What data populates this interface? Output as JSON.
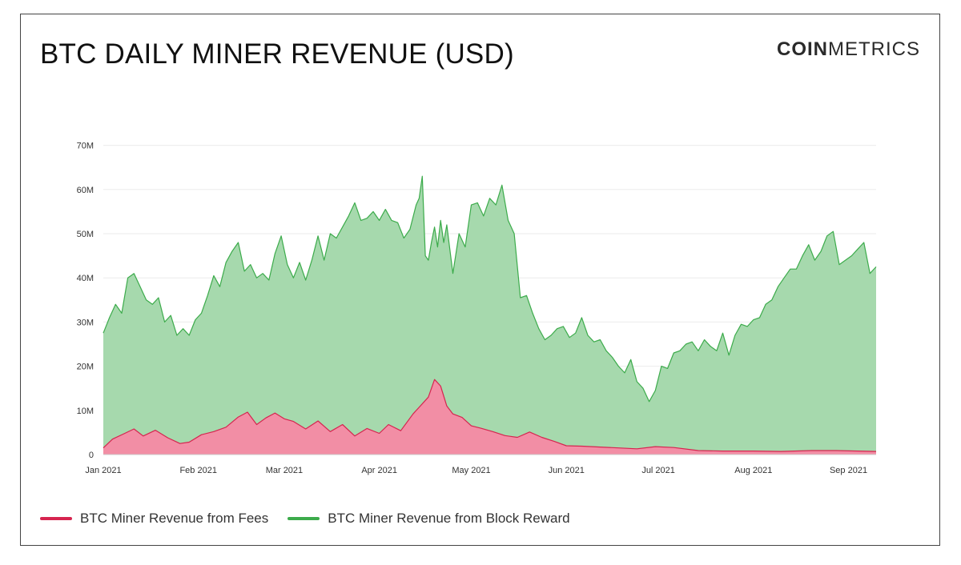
{
  "header": {
    "title": "BTC DAILY MINER REVENUE (USD)",
    "logo_bold": "COIN",
    "logo_light": "METRICS"
  },
  "legend": {
    "fees_label": "BTC Miner Revenue from Fees",
    "reward_label": "BTC Miner Revenue from Block Reward"
  },
  "colors": {
    "fees_line": "#d6244f",
    "fees_fill": "#f28ea5",
    "reward_line": "#3cab4b",
    "reward_fill": "#a6d9ad",
    "grid": "#ebebeb",
    "watermark": "#cfe9d2"
  },
  "chart_data": {
    "type": "area",
    "title": "BTC DAILY MINER REVENUE (USD)",
    "xlabel": "",
    "ylabel": "",
    "ylim": [
      0,
      75000000
    ],
    "y_ticks": [
      0,
      10000000,
      20000000,
      30000000,
      40000000,
      50000000,
      60000000,
      70000000
    ],
    "y_tick_labels": [
      "0",
      "10M",
      "20M",
      "30M",
      "40M",
      "50M",
      "60M",
      "70M"
    ],
    "x_ticks": [
      "2021-01-01",
      "2021-02-01",
      "2021-03-01",
      "2021-04-01",
      "2021-05-01",
      "2021-06-01",
      "2021-07-01",
      "2021-08-01",
      "2021-09-01"
    ],
    "x_tick_labels": [
      "Jan 2021",
      "Feb 2021",
      "Mar 2021",
      "Apr 2021",
      "May 2021",
      "Jun 2021",
      "Jul 2021",
      "Aug 2021",
      "Sep 2021"
    ],
    "grid": true,
    "legend_position": "bottom-left",
    "stacked": true,
    "series": [
      {
        "name": "BTC Miner Revenue from Fees",
        "x": [
          "2021-01-01",
          "2021-01-04",
          "2021-01-08",
          "2021-01-11",
          "2021-01-14",
          "2021-01-18",
          "2021-01-22",
          "2021-01-26",
          "2021-01-29",
          "2021-02-02",
          "2021-02-06",
          "2021-02-10",
          "2021-02-14",
          "2021-02-17",
          "2021-02-20",
          "2021-02-23",
          "2021-02-26",
          "2021-03-01",
          "2021-03-04",
          "2021-03-08",
          "2021-03-12",
          "2021-03-16",
          "2021-03-20",
          "2021-03-24",
          "2021-03-28",
          "2021-04-01",
          "2021-04-04",
          "2021-04-08",
          "2021-04-12",
          "2021-04-14",
          "2021-04-17",
          "2021-04-19",
          "2021-04-21",
          "2021-04-23",
          "2021-04-25",
          "2021-04-28",
          "2021-05-01",
          "2021-05-04",
          "2021-05-08",
          "2021-05-12",
          "2021-05-16",
          "2021-05-20",
          "2021-05-24",
          "2021-05-28",
          "2021-06-01",
          "2021-06-06",
          "2021-06-12",
          "2021-06-18",
          "2021-06-24",
          "2021-06-30",
          "2021-07-06",
          "2021-07-14",
          "2021-07-22",
          "2021-08-01",
          "2021-08-10",
          "2021-08-20",
          "2021-08-28",
          "2021-09-04",
          "2021-09-10"
        ],
        "values": [
          1500000,
          3500000,
          4800000,
          5800000,
          4200000,
          5500000,
          3800000,
          2500000,
          2800000,
          4500000,
          5200000,
          6200000,
          8500000,
          9600000,
          6800000,
          8300000,
          9400000,
          8100000,
          7500000,
          5800000,
          7600000,
          5200000,
          6800000,
          4200000,
          5900000,
          4800000,
          6800000,
          5400000,
          9200000,
          10700000,
          13000000,
          17000000,
          15500000,
          11000000,
          9200000,
          8400000,
          6500000,
          6000000,
          5200000,
          4300000,
          3900000,
          5100000,
          3900000,
          3000000,
          2000000,
          1900000,
          1700000,
          1500000,
          1300000,
          1800000,
          1600000,
          900000,
          800000,
          800000,
          700000,
          900000,
          900000,
          800000,
          700000
        ]
      },
      {
        "name": "BTC Miner Revenue from Block Reward",
        "x": [
          "2021-01-01",
          "2021-01-03",
          "2021-01-05",
          "2021-01-07",
          "2021-01-09",
          "2021-01-11",
          "2021-01-13",
          "2021-01-15",
          "2021-01-17",
          "2021-01-19",
          "2021-01-21",
          "2021-01-23",
          "2021-01-25",
          "2021-01-27",
          "2021-01-29",
          "2021-01-31",
          "2021-02-02",
          "2021-02-04",
          "2021-02-06",
          "2021-02-08",
          "2021-02-10",
          "2021-02-12",
          "2021-02-14",
          "2021-02-16",
          "2021-02-18",
          "2021-02-20",
          "2021-02-22",
          "2021-02-24",
          "2021-02-26",
          "2021-02-28",
          "2021-03-02",
          "2021-03-04",
          "2021-03-06",
          "2021-03-08",
          "2021-03-10",
          "2021-03-12",
          "2021-03-14",
          "2021-03-16",
          "2021-03-18",
          "2021-03-20",
          "2021-03-22",
          "2021-03-24",
          "2021-03-26",
          "2021-03-28",
          "2021-03-30",
          "2021-04-01",
          "2021-04-03",
          "2021-04-05",
          "2021-04-07",
          "2021-04-09",
          "2021-04-11",
          "2021-04-13",
          "2021-04-14",
          "2021-04-15",
          "2021-04-16",
          "2021-04-17",
          "2021-04-18",
          "2021-04-19",
          "2021-04-20",
          "2021-04-21",
          "2021-04-22",
          "2021-04-23",
          "2021-04-25",
          "2021-04-27",
          "2021-04-29",
          "2021-05-01",
          "2021-05-03",
          "2021-05-05",
          "2021-05-07",
          "2021-05-09",
          "2021-05-11",
          "2021-05-13",
          "2021-05-15",
          "2021-05-17",
          "2021-05-19",
          "2021-05-21",
          "2021-05-23",
          "2021-05-25",
          "2021-05-27",
          "2021-05-29",
          "2021-05-31",
          "2021-06-02",
          "2021-06-04",
          "2021-06-06",
          "2021-06-08",
          "2021-06-10",
          "2021-06-12",
          "2021-06-14",
          "2021-06-16",
          "2021-06-18",
          "2021-06-20",
          "2021-06-22",
          "2021-06-24",
          "2021-06-26",
          "2021-06-28",
          "2021-06-30",
          "2021-07-02",
          "2021-07-04",
          "2021-07-06",
          "2021-07-08",
          "2021-07-10",
          "2021-07-12",
          "2021-07-14",
          "2021-07-16",
          "2021-07-18",
          "2021-07-20",
          "2021-07-22",
          "2021-07-24",
          "2021-07-26",
          "2021-07-28",
          "2021-07-30",
          "2021-08-01",
          "2021-08-03",
          "2021-08-05",
          "2021-08-07",
          "2021-08-09",
          "2021-08-11",
          "2021-08-13",
          "2021-08-15",
          "2021-08-17",
          "2021-08-19",
          "2021-08-21",
          "2021-08-23",
          "2021-08-25",
          "2021-08-27",
          "2021-08-29",
          "2021-08-31",
          "2021-09-02",
          "2021-09-04",
          "2021-09-06",
          "2021-09-08",
          "2021-09-10"
        ],
        "values": [
          27500000,
          31000000,
          34000000,
          32000000,
          40000000,
          41000000,
          38000000,
          35000000,
          34000000,
          35500000,
          30000000,
          31500000,
          27000000,
          28500000,
          27000000,
          30500000,
          32000000,
          36000000,
          40500000,
          38000000,
          43500000,
          46000000,
          48000000,
          41500000,
          43000000,
          40000000,
          41000000,
          39500000,
          45500000,
          49500000,
          43000000,
          40000000,
          43500000,
          39500000,
          44000000,
          49500000,
          44000000,
          50000000,
          49000000,
          51500000,
          54000000,
          57000000,
          53000000,
          53500000,
          55000000,
          53000000,
          55500000,
          53000000,
          52500000,
          49000000,
          51000000,
          56500000,
          58000000,
          63000000,
          45000000,
          44000000,
          48000000,
          51500000,
          47000000,
          53000000,
          48000000,
          52000000,
          41000000,
          50000000,
          47000000,
          56500000,
          57000000,
          54000000,
          58000000,
          56500000,
          61000000,
          53000000,
          50000000,
          35500000,
          36000000,
          32000000,
          28500000,
          26000000,
          27000000,
          28500000,
          29000000,
          26500000,
          27500000,
          31000000,
          27000000,
          25500000,
          26000000,
          23500000,
          22000000,
          20000000,
          18500000,
          21500000,
          16500000,
          15000000,
          12000000,
          14500000,
          20000000,
          19500000,
          23000000,
          23500000,
          25000000,
          25500000,
          23500000,
          26000000,
          24500000,
          23500000,
          27500000,
          22500000,
          27000000,
          29500000,
          29000000,
          30500000,
          31000000,
          34000000,
          35000000,
          38000000,
          40000000,
          42000000,
          42000000,
          45000000,
          47500000,
          44000000,
          46000000,
          49500000,
          50500000,
          43000000,
          44000000,
          45000000,
          46500000,
          48000000,
          41000000,
          42500000
        ]
      }
    ]
  }
}
